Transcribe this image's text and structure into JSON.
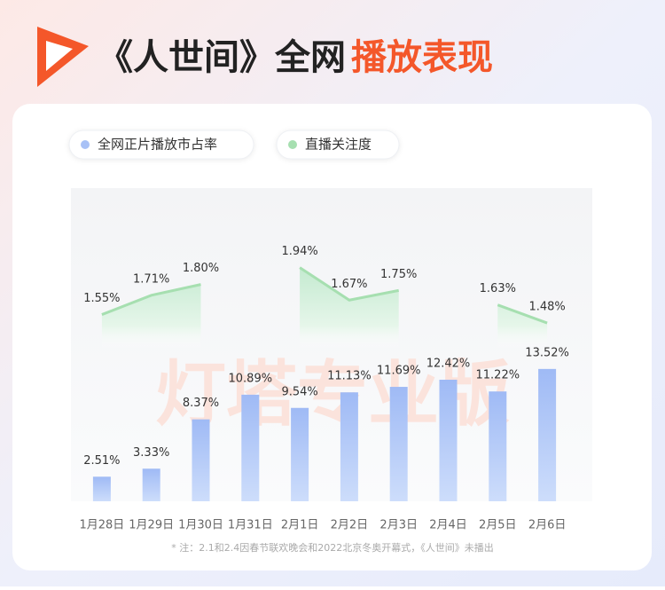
{
  "chart_data": {
    "type": "bar_line",
    "title": "《人世间》全网",
    "title_highlight": "播放表现",
    "categories": [
      "1月28日",
      "1月29日",
      "1月30日",
      "1月31日",
      "2月1日",
      "2月2日",
      "2月3日",
      "2月4日",
      "2月5日",
      "2月6日"
    ],
    "series": [
      {
        "name": "全网正片播放市占率",
        "color": "#a8c1f6",
        "type": "bar",
        "values": [
          2.51,
          3.33,
          8.37,
          10.89,
          9.54,
          11.13,
          11.69,
          12.42,
          11.22,
          13.52
        ],
        "value_labels": [
          "2.51%",
          "3.33%",
          "8.37%",
          "10.89%",
          "9.54%",
          "11.13%",
          "11.69%",
          "12.42%",
          "11.22%",
          "13.52%"
        ]
      },
      {
        "name": "直播关注度",
        "color": "#a6dfb0",
        "type": "line",
        "axis": "y2",
        "values": [
          1.55,
          1.71,
          1.8,
          null,
          1.94,
          1.67,
          1.75,
          null,
          1.63,
          1.48
        ],
        "value_labels": [
          "1.55%",
          "1.71%",
          "1.80%",
          null,
          "1.94%",
          "1.67%",
          "1.75%",
          null,
          "1.63%",
          "1.48%"
        ]
      }
    ],
    "ylim": [
      0,
      32
    ],
    "y2lim": [
      0,
      2.6
    ],
    "watermark": "灯塔专业版",
    "footnote": "* 注：2.1和2.4因春节联欢晚会和2022北京冬奥开幕式，《人世间》未播出"
  }
}
